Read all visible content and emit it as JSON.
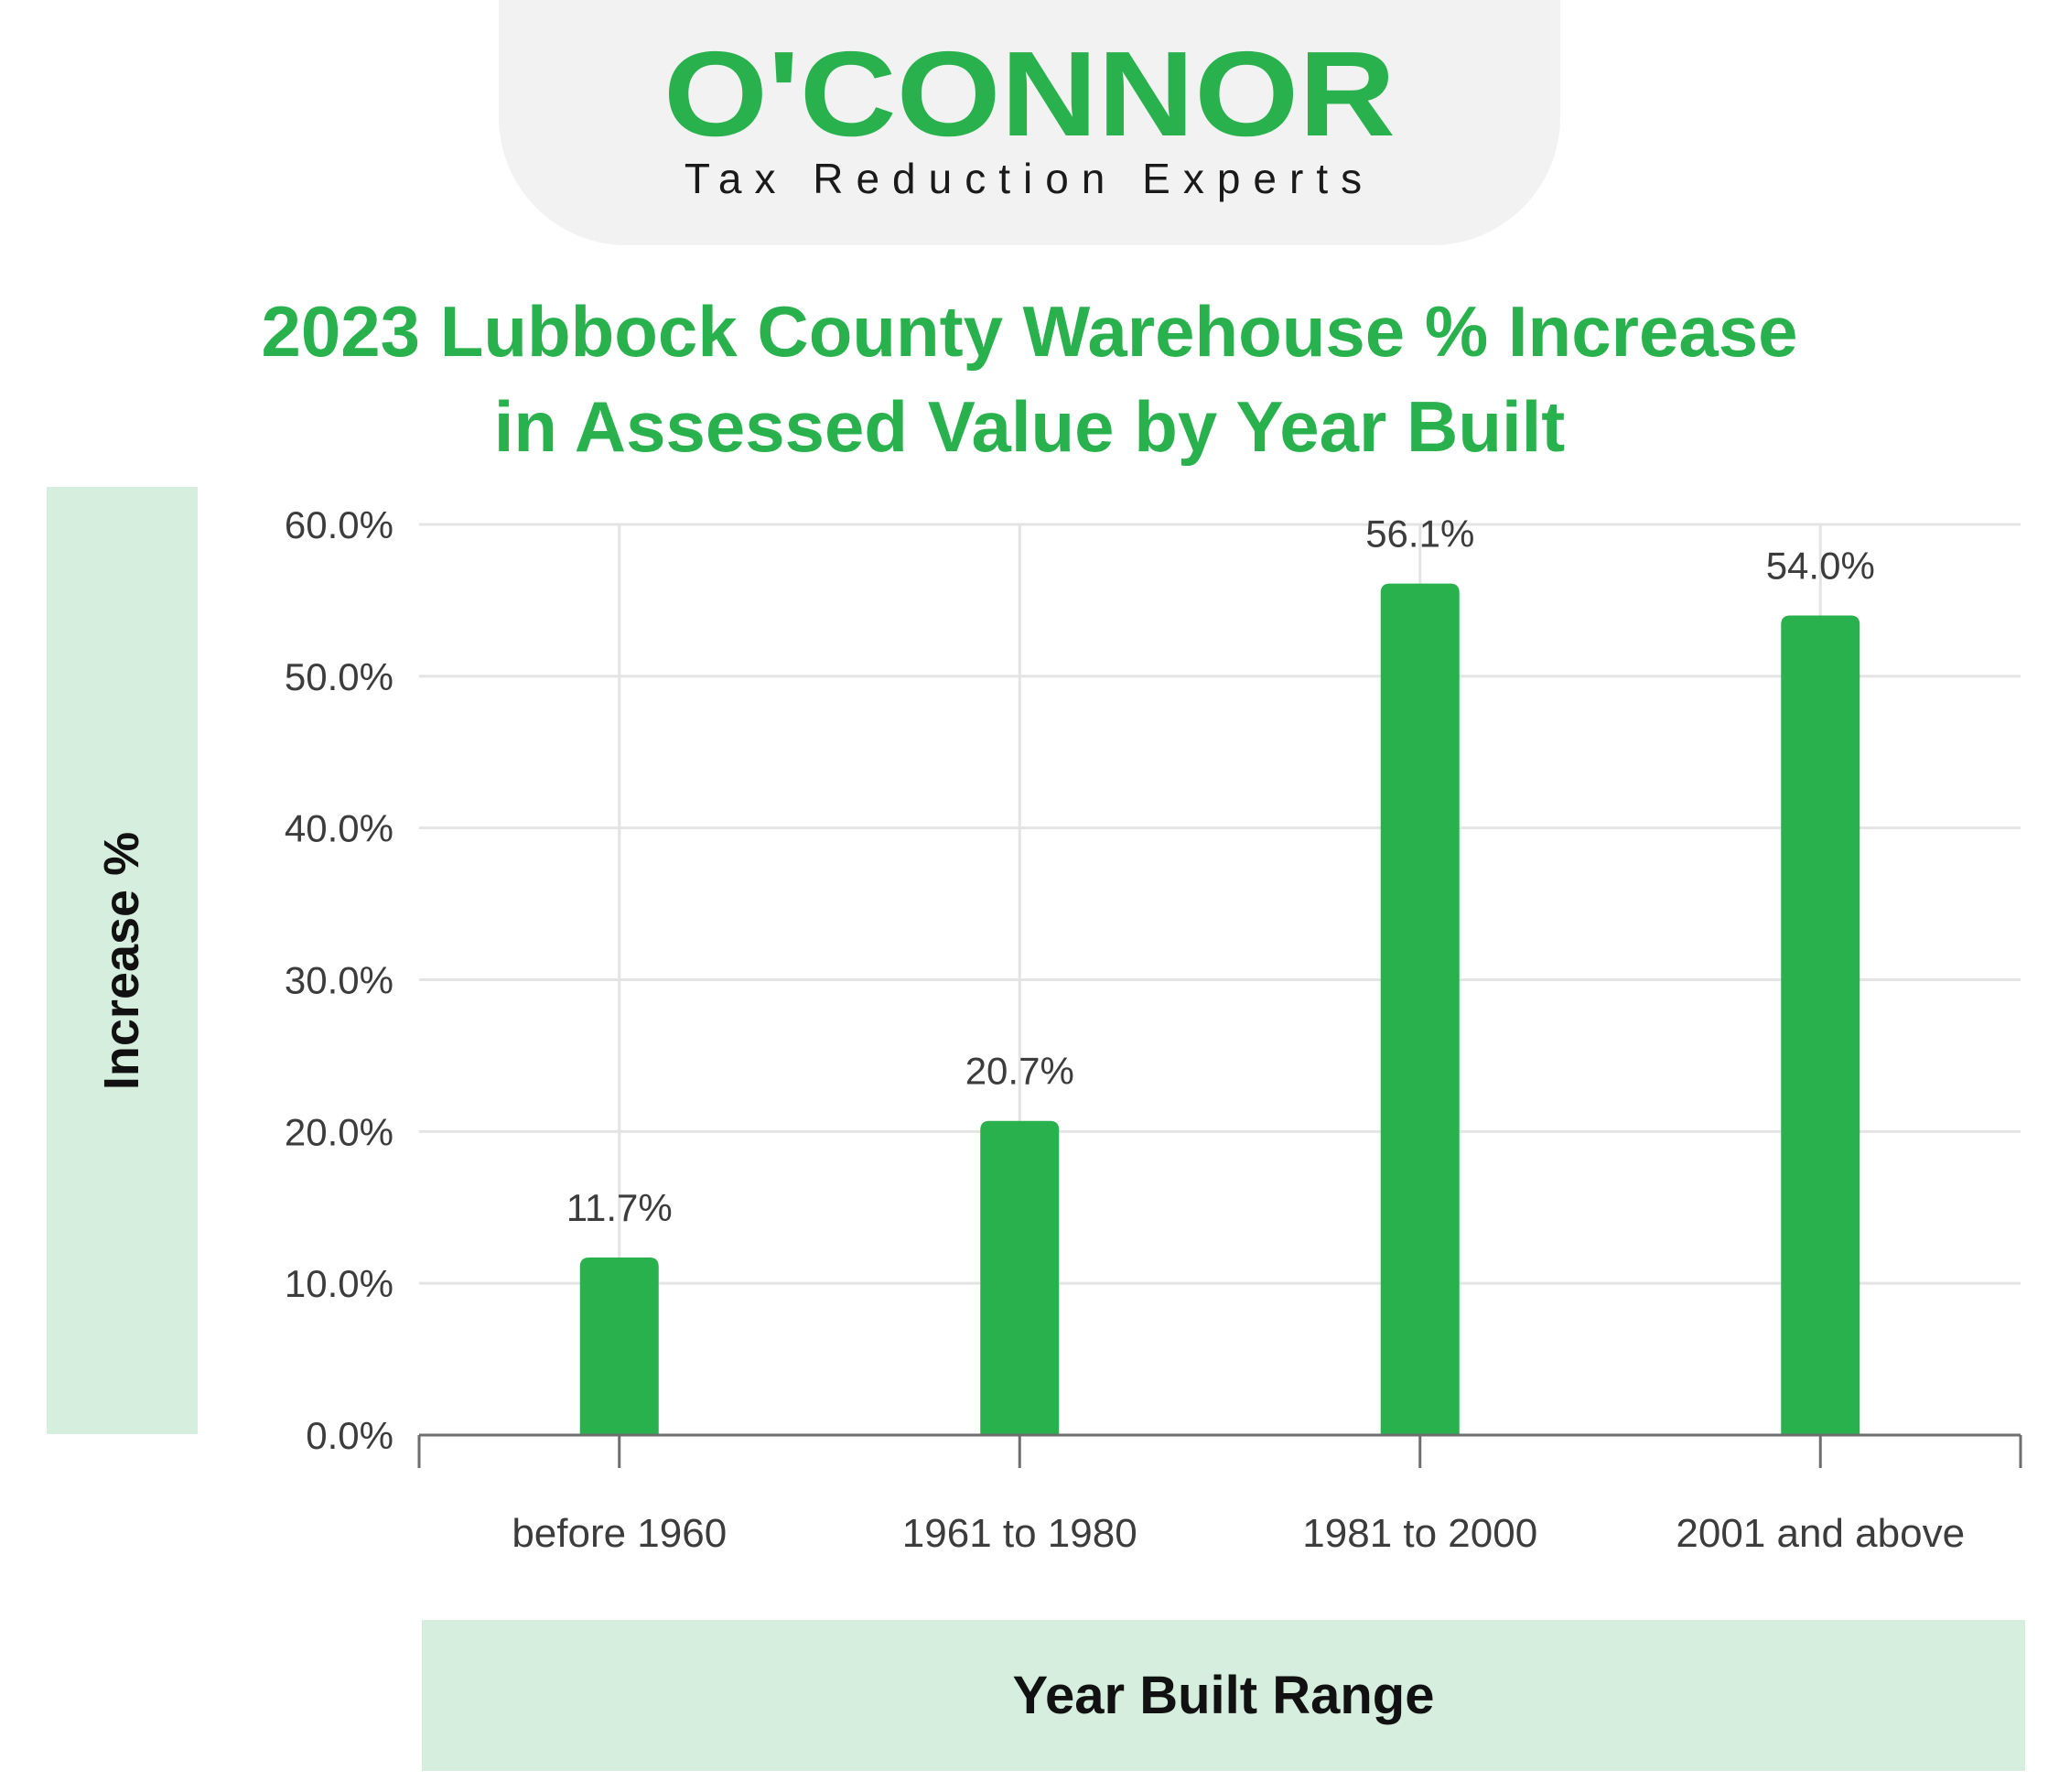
{
  "brand": {
    "name": "O'CONNOR",
    "tagline": "Tax Reduction Experts",
    "color": "#28b14c"
  },
  "chart_data": {
    "type": "bar",
    "title_line1": "2023 Lubbock County Warehouse % Increase",
    "title_line2": "in Assessed Value by Year Built",
    "xlabel": "Year Built Range",
    "ylabel": "Increase %",
    "categories": [
      "before 1960",
      "1961 to 1980",
      "1981 to 2000",
      "2001 and above"
    ],
    "values": [
      11.7,
      20.7,
      56.1,
      54.0
    ],
    "data_labels": [
      "11.7%",
      "20.7%",
      "56.1%",
      "54.0%"
    ],
    "ylim": [
      0,
      60
    ],
    "yticks": [
      0,
      10,
      20,
      30,
      40,
      50,
      60
    ],
    "ytick_labels": [
      "0.0%",
      "10.0%",
      "20.0%",
      "30.0%",
      "40.0%",
      "50.0%",
      "60.0%"
    ],
    "grid": true,
    "bar_color": "#28b14c",
    "grid_color": "#e4e4e4",
    "axis_color": "#6e6e6e",
    "label_color": "#3c3c3c"
  }
}
